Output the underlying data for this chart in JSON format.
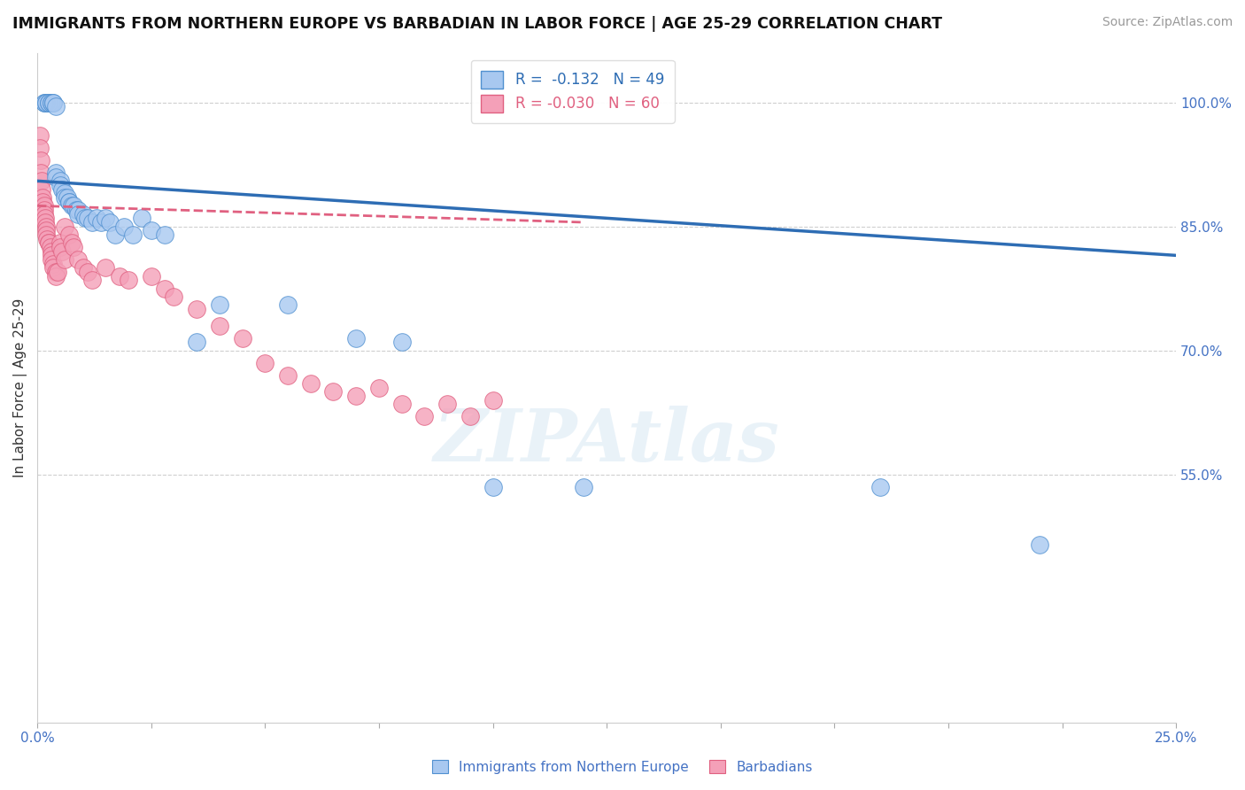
{
  "title": "IMMIGRANTS FROM NORTHERN EUROPE VS BARBADIAN IN LABOR FORCE | AGE 25-29 CORRELATION CHART",
  "source": "Source: ZipAtlas.com",
  "ylabel": "In Labor Force | Age 25-29",
  "legend_blue_label": "Immigrants from Northern Europe",
  "legend_pink_label": "Barbadians",
  "blue_r": "-0.132",
  "blue_n": "49",
  "pink_r": "-0.030",
  "pink_n": "60",
  "blue_color": "#A8C8F0",
  "pink_color": "#F4A0B8",
  "blue_edge_color": "#5090D0",
  "pink_edge_color": "#E06080",
  "blue_line_color": "#2E6DB4",
  "pink_line_color": "#E06080",
  "watermark": "ZIPAtlas",
  "x_range": [
    0.0,
    25.0
  ],
  "y_range": [
    25.0,
    106.0
  ],
  "blue_trend_x0": 0.0,
  "blue_trend_y0": 90.5,
  "blue_trend_x1": 25.0,
  "blue_trend_y1": 81.5,
  "pink_trend_x0": 0.0,
  "pink_trend_y0": 87.5,
  "pink_trend_x1": 12.0,
  "pink_trend_y1": 85.5,
  "blue_scatter_x": [
    0.15,
    0.15,
    0.2,
    0.2,
    0.25,
    0.25,
    0.3,
    0.3,
    0.35,
    0.35,
    0.4,
    0.4,
    0.4,
    0.5,
    0.5,
    0.55,
    0.6,
    0.6,
    0.65,
    0.7,
    0.7,
    0.75,
    0.8,
    0.85,
    0.9,
    0.9,
    1.0,
    1.05,
    1.1,
    1.2,
    1.3,
    1.4,
    1.5,
    1.6,
    1.7,
    1.9,
    2.1,
    2.3,
    2.5,
    2.8,
    3.5,
    4.0,
    5.5,
    7.0,
    8.0,
    10.0,
    12.0,
    18.5,
    22.0
  ],
  "blue_scatter_y": [
    100.0,
    100.0,
    100.0,
    100.0,
    100.0,
    100.0,
    100.0,
    100.0,
    100.0,
    100.0,
    99.5,
    91.5,
    91.0,
    90.5,
    90.0,
    89.5,
    89.0,
    88.5,
    88.5,
    88.0,
    88.0,
    87.5,
    87.5,
    87.0,
    87.0,
    86.5,
    86.5,
    86.0,
    86.0,
    85.5,
    86.0,
    85.5,
    86.0,
    85.5,
    84.0,
    85.0,
    84.0,
    86.0,
    84.5,
    84.0,
    71.0,
    75.5,
    75.5,
    71.5,
    71.0,
    53.5,
    53.5,
    53.5,
    46.5
  ],
  "pink_scatter_x": [
    0.05,
    0.05,
    0.08,
    0.08,
    0.1,
    0.1,
    0.12,
    0.12,
    0.15,
    0.15,
    0.15,
    0.18,
    0.18,
    0.2,
    0.2,
    0.2,
    0.22,
    0.25,
    0.25,
    0.28,
    0.3,
    0.3,
    0.3,
    0.35,
    0.35,
    0.4,
    0.4,
    0.45,
    0.5,
    0.5,
    0.55,
    0.6,
    0.6,
    0.7,
    0.75,
    0.8,
    0.9,
    1.0,
    1.1,
    1.2,
    1.5,
    1.8,
    2.0,
    2.5,
    2.8,
    3.0,
    3.5,
    4.0,
    4.5,
    5.0,
    5.5,
    6.0,
    6.5,
    7.0,
    7.5,
    8.0,
    8.5,
    9.0,
    9.5,
    10.0
  ],
  "pink_scatter_y": [
    96.0,
    94.5,
    93.0,
    91.5,
    90.5,
    89.5,
    88.5,
    88.0,
    87.5,
    87.0,
    86.5,
    86.0,
    85.5,
    85.0,
    84.5,
    84.0,
    83.5,
    83.0,
    83.0,
    82.5,
    82.0,
    81.5,
    81.0,
    80.5,
    80.0,
    79.5,
    79.0,
    79.5,
    83.0,
    82.5,
    82.0,
    81.0,
    85.0,
    84.0,
    83.0,
    82.5,
    81.0,
    80.0,
    79.5,
    78.5,
    80.0,
    79.0,
    78.5,
    79.0,
    77.5,
    76.5,
    75.0,
    73.0,
    71.5,
    68.5,
    67.0,
    66.0,
    65.0,
    64.5,
    65.5,
    63.5,
    62.0,
    63.5,
    62.0,
    64.0
  ]
}
